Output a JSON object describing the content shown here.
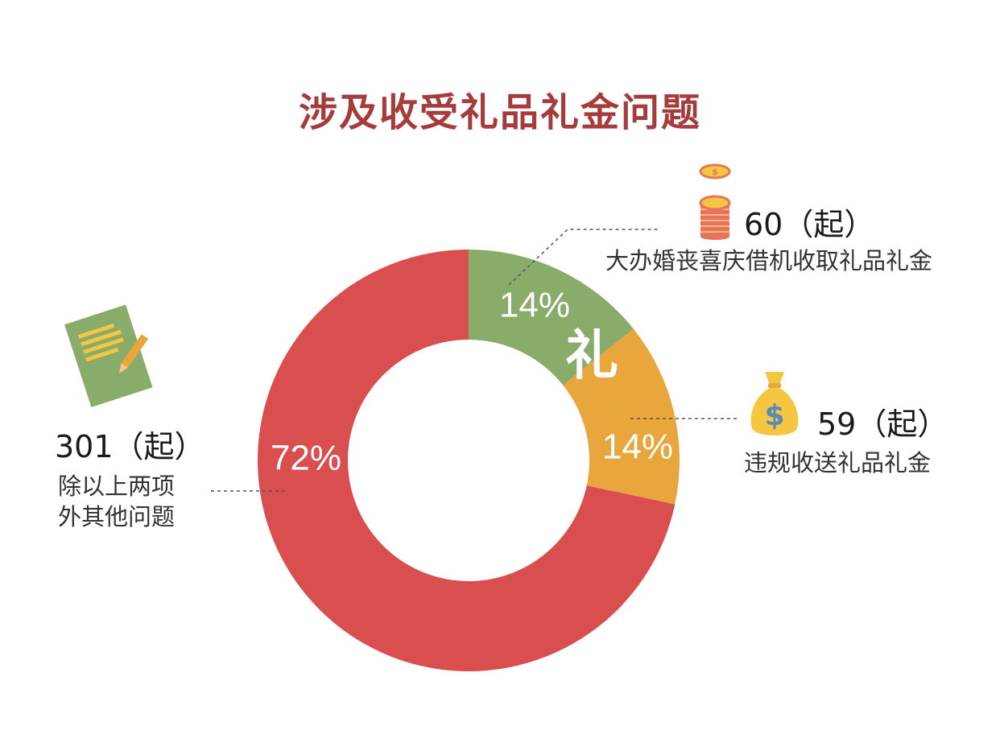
{
  "title": "涉及收受礼品礼金问题",
  "center_char": "礼",
  "chart_data": {
    "type": "pie",
    "title": "涉及收受礼品礼金问题",
    "slices": [
      {
        "label": "大办婚丧喜庆借机收取礼品礼金",
        "count": 60,
        "count_text": "60（起）",
        "percent": 14,
        "percent_text": "14%",
        "color": "#8aac6a"
      },
      {
        "label": "违规收送礼品礼金",
        "count": 59,
        "count_text": "59（起）",
        "percent": 14,
        "percent_text": "14%",
        "color": "#e9a63c"
      },
      {
        "label": "除以上两项外其他问题",
        "count": 301,
        "count_text": "301（起）",
        "percent": 72,
        "percent_text": "72%",
        "color": "#d94e4e"
      }
    ]
  },
  "callouts": {
    "green": {
      "count": "60（起）",
      "label": "大办婚丧喜庆借机收取礼品礼金",
      "icon": "coin-stack-icon"
    },
    "orange": {
      "count": "59（起）",
      "label": "违规收送礼品礼金",
      "icon": "money-bag-icon"
    },
    "red": {
      "count": "301（起）",
      "label_line1": "除以上两项",
      "label_line2": "外其他问题",
      "icon": "notepad-pencil-icon"
    }
  }
}
